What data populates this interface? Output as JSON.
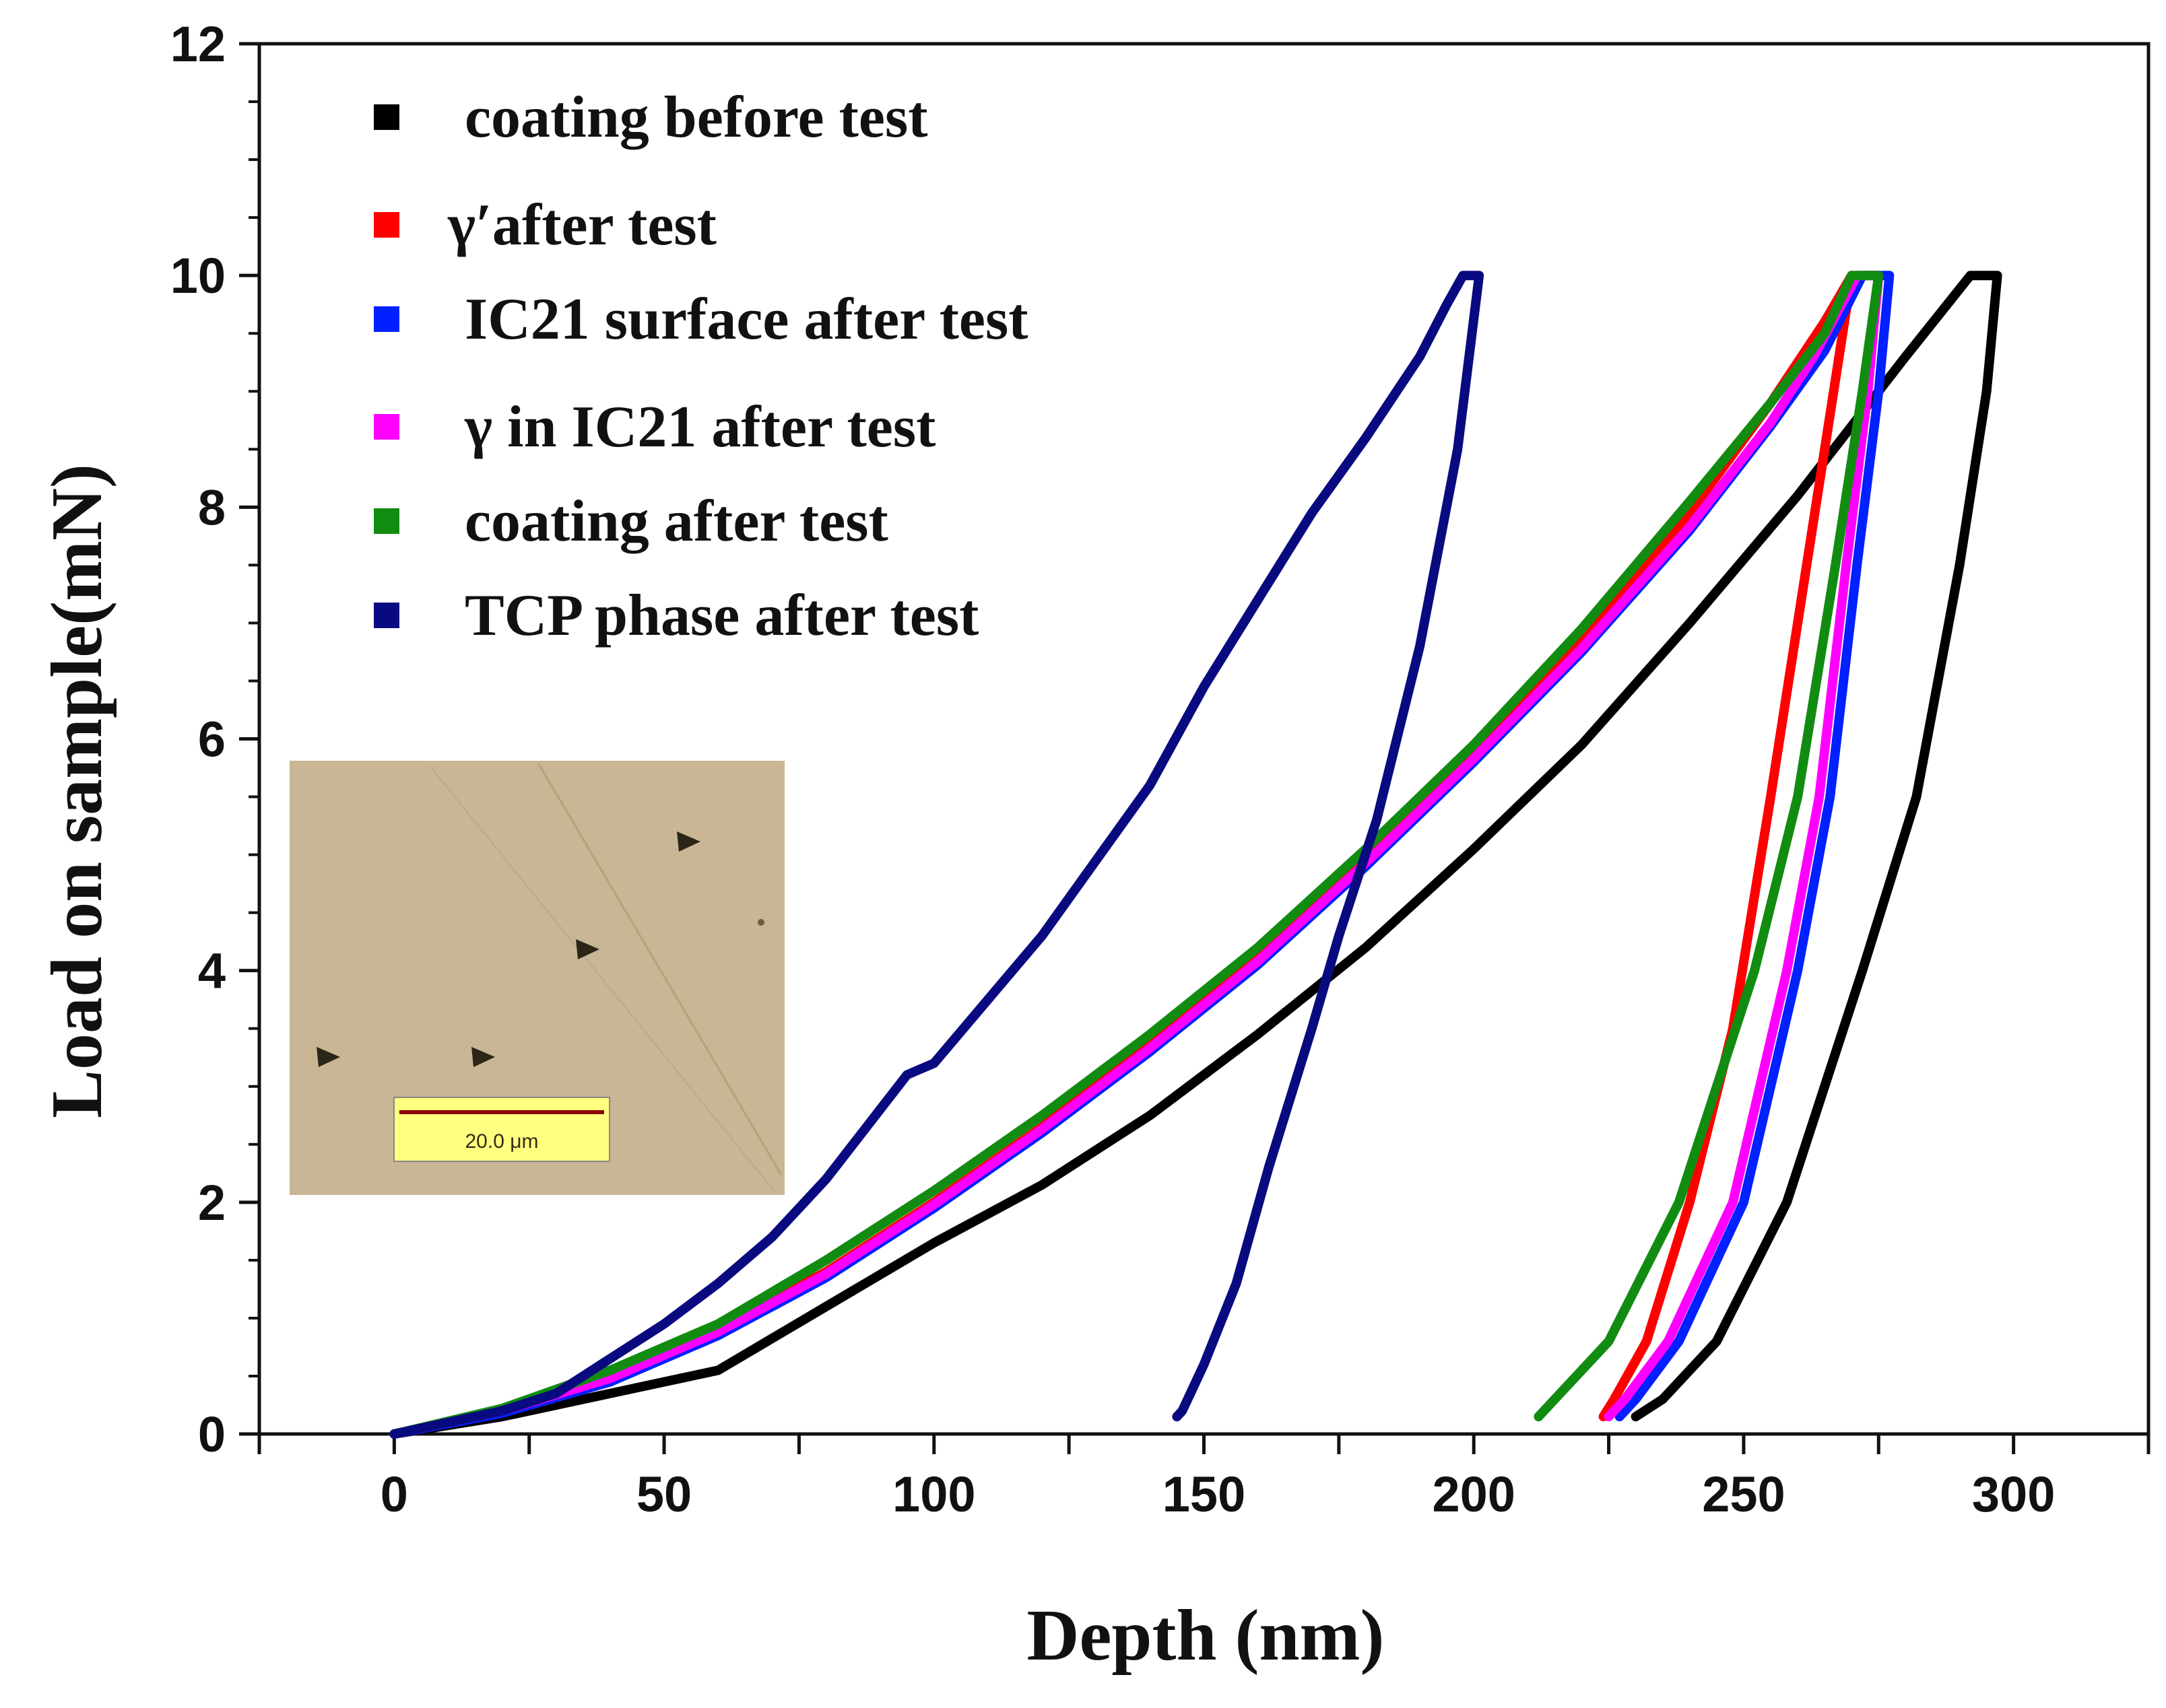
{
  "chart_data": {
    "type": "line",
    "title": "",
    "xlabel": "Depth (nm)",
    "ylabel": "Load on sample(mN)",
    "xlim": [
      -25,
      325
    ],
    "ylim": [
      0,
      12
    ],
    "xticks": [
      0,
      50,
      100,
      150,
      200,
      250,
      300
    ],
    "yticks": [
      0,
      2,
      4,
      6,
      8,
      10,
      12
    ],
    "grid": false,
    "legend_position": "top-left",
    "series": [
      {
        "name": "coating before test",
        "color": "#000000",
        "points": [
          [
            0,
            0
          ],
          [
            20,
            0.15
          ],
          [
            40,
            0.35
          ],
          [
            60,
            0.55
          ],
          [
            80,
            1.1
          ],
          [
            100,
            1.65
          ],
          [
            120,
            2.15
          ],
          [
            140,
            2.75
          ],
          [
            160,
            3.45
          ],
          [
            180,
            4.2
          ],
          [
            200,
            5.05
          ],
          [
            220,
            5.95
          ],
          [
            240,
            7.0
          ],
          [
            260,
            8.1
          ],
          [
            280,
            9.3
          ],
          [
            292,
            10.0
          ],
          [
            297,
            10.0
          ],
          [
            295,
            9.0
          ],
          [
            290,
            7.5
          ],
          [
            282,
            5.5
          ],
          [
            272,
            4.0
          ],
          [
            258,
            2.0
          ],
          [
            245,
            0.8
          ],
          [
            235,
            0.3
          ],
          [
            230,
            0.15
          ]
        ]
      },
      {
        "name": "γ′after test",
        "color": "#ff0000",
        "points": [
          [
            0,
            0
          ],
          [
            20,
            0.2
          ],
          [
            40,
            0.5
          ],
          [
            60,
            0.9
          ],
          [
            80,
            1.4
          ],
          [
            100,
            2.0
          ],
          [
            120,
            2.65
          ],
          [
            140,
            3.35
          ],
          [
            160,
            4.1
          ],
          [
            180,
            4.95
          ],
          [
            200,
            5.85
          ],
          [
            220,
            6.85
          ],
          [
            240,
            7.95
          ],
          [
            255,
            8.9
          ],
          [
            265,
            9.6
          ],
          [
            270,
            10.0
          ],
          [
            266,
            8.8
          ],
          [
            260,
            7.0
          ],
          [
            255,
            5.5
          ],
          [
            248,
            3.5
          ],
          [
            240,
            2.0
          ],
          [
            232,
            0.8
          ],
          [
            226,
            0.3
          ],
          [
            224,
            0.15
          ]
        ]
      },
      {
        "name": "IC21 surface after test",
        "color": "#0020ff",
        "points": [
          [
            0,
            0
          ],
          [
            20,
            0.18
          ],
          [
            40,
            0.45
          ],
          [
            60,
            0.85
          ],
          [
            80,
            1.35
          ],
          [
            100,
            1.95
          ],
          [
            120,
            2.6
          ],
          [
            140,
            3.3
          ],
          [
            160,
            4.05
          ],
          [
            180,
            4.9
          ],
          [
            200,
            5.8
          ],
          [
            220,
            6.75
          ],
          [
            240,
            7.8
          ],
          [
            255,
            8.7
          ],
          [
            265,
            9.35
          ],
          [
            272,
            10.0
          ],
          [
            277,
            10.0
          ],
          [
            275,
            9.0
          ],
          [
            271,
            7.5
          ],
          [
            266,
            5.5
          ],
          [
            260,
            4.0
          ],
          [
            250,
            2.0
          ],
          [
            238,
            0.8
          ],
          [
            230,
            0.3
          ],
          [
            227,
            0.15
          ]
        ]
      },
      {
        "name": "γ in IC21 after test",
        "color": "#ff00ff",
        "points": [
          [
            0,
            0
          ],
          [
            20,
            0.2
          ],
          [
            40,
            0.48
          ],
          [
            60,
            0.88
          ],
          [
            80,
            1.38
          ],
          [
            100,
            1.98
          ],
          [
            120,
            2.63
          ],
          [
            140,
            3.33
          ],
          [
            160,
            4.08
          ],
          [
            180,
            4.93
          ],
          [
            200,
            5.83
          ],
          [
            220,
            6.78
          ],
          [
            240,
            7.83
          ],
          [
            255,
            8.73
          ],
          [
            263,
            9.3
          ],
          [
            271,
            10.0
          ],
          [
            275,
            10.0
          ],
          [
            273,
            9.0
          ],
          [
            269,
            7.5
          ],
          [
            264,
            5.5
          ],
          [
            258,
            4.0
          ],
          [
            248,
            2.0
          ],
          [
            236,
            0.8
          ],
          [
            228,
            0.3
          ],
          [
            225,
            0.15
          ]
        ]
      },
      {
        "name": "coating after test",
        "color": "#118c11",
        "points": [
          [
            0,
            0
          ],
          [
            20,
            0.22
          ],
          [
            40,
            0.55
          ],
          [
            60,
            0.95
          ],
          [
            80,
            1.5
          ],
          [
            100,
            2.1
          ],
          [
            120,
            2.75
          ],
          [
            140,
            3.45
          ],
          [
            160,
            4.2
          ],
          [
            180,
            5.05
          ],
          [
            200,
            5.95
          ],
          [
            220,
            6.95
          ],
          [
            240,
            8.05
          ],
          [
            255,
            8.9
          ],
          [
            265,
            9.5
          ],
          [
            270,
            10.0
          ],
          [
            275,
            10.0
          ],
          [
            272,
            9.0
          ],
          [
            267,
            7.5
          ],
          [
            260,
            5.5
          ],
          [
            252,
            4.0
          ],
          [
            238,
            2.0
          ],
          [
            225,
            0.8
          ],
          [
            215,
            0.3
          ],
          [
            212,
            0.15
          ]
        ]
      },
      {
        "name": "TCP phase after test",
        "color": "#0a0a80",
        "points": [
          [
            0,
            0
          ],
          [
            20,
            0.2
          ],
          [
            30,
            0.35
          ],
          [
            40,
            0.65
          ],
          [
            50,
            0.95
          ],
          [
            60,
            1.3
          ],
          [
            70,
            1.7
          ],
          [
            80,
            2.2
          ],
          [
            90,
            2.8
          ],
          [
            95,
            3.1
          ],
          [
            100,
            3.2
          ],
          [
            110,
            3.75
          ],
          [
            120,
            4.3
          ],
          [
            130,
            4.95
          ],
          [
            140,
            5.6
          ],
          [
            150,
            6.45
          ],
          [
            160,
            7.2
          ],
          [
            170,
            7.95
          ],
          [
            180,
            8.6
          ],
          [
            190,
            9.3
          ],
          [
            195,
            9.75
          ],
          [
            198,
            10.0
          ],
          [
            201,
            10.0
          ],
          [
            197,
            8.5
          ],
          [
            190,
            6.8
          ],
          [
            182,
            5.3
          ],
          [
            175,
            4.3
          ],
          [
            170,
            3.5
          ],
          [
            162,
            2.3
          ],
          [
            156,
            1.3
          ],
          [
            150,
            0.6
          ],
          [
            146,
            0.2
          ],
          [
            145,
            0.15
          ]
        ]
      }
    ],
    "inset": {
      "description_text": "",
      "scale_bar_label": "20.0 μm"
    }
  }
}
